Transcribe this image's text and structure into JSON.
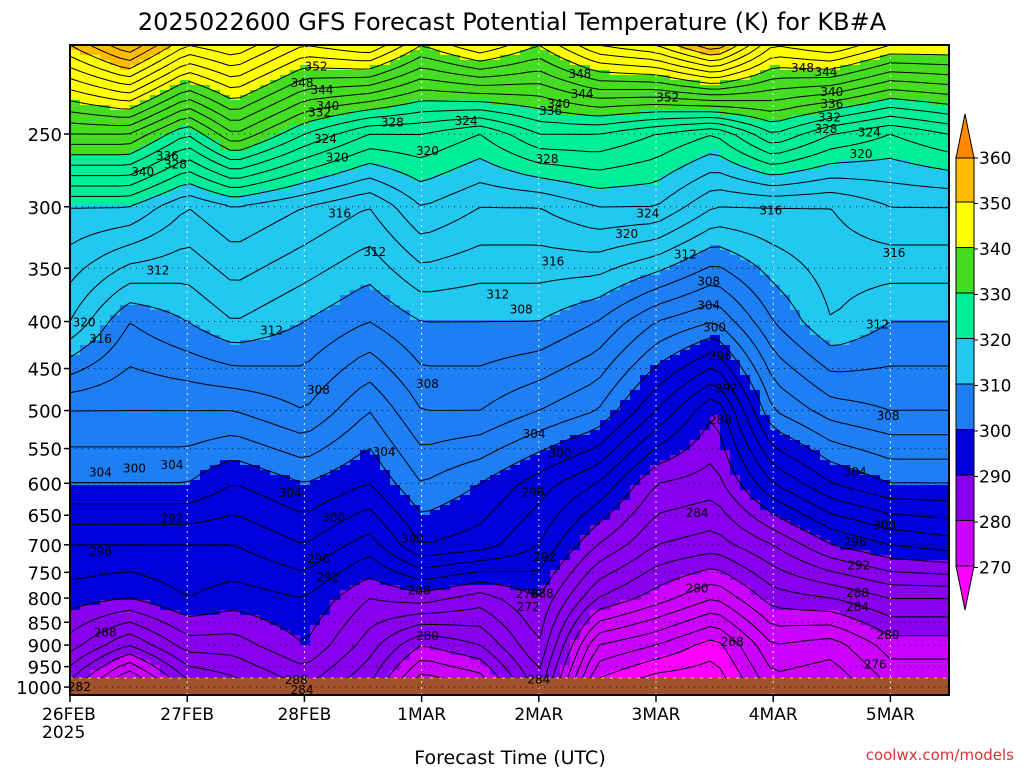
{
  "chart_data": {
    "type": "heatmap",
    "title": "2025022600 GFS Forecast Potential Temperature (K) for KB#A",
    "xlabel": "Forecast Time (UTC)",
    "ylabel": "",
    "credit": "coolwx.com/models",
    "units": "K",
    "y_scale": "log",
    "y_reversed": true,
    "ylim": [
      1020,
      200
    ],
    "xlim": [
      0,
      7.5
    ],
    "grid": true,
    "x_ticks": [
      {
        "value": 0,
        "label": "26FEB",
        "sub": "2025"
      },
      {
        "value": 1,
        "label": "27FEB",
        "sub": ""
      },
      {
        "value": 2,
        "label": "28FEB",
        "sub": ""
      },
      {
        "value": 3,
        "label": "1MAR",
        "sub": ""
      },
      {
        "value": 4,
        "label": "2MAR",
        "sub": ""
      },
      {
        "value": 5,
        "label": "3MAR",
        "sub": ""
      },
      {
        "value": 6,
        "label": "4MAR",
        "sub": ""
      },
      {
        "value": 7,
        "label": "5MAR",
        "sub": ""
      }
    ],
    "y_ticks": [
      250,
      300,
      350,
      400,
      450,
      500,
      550,
      600,
      650,
      700,
      750,
      800,
      850,
      900,
      950,
      1000
    ],
    "colorbar": {
      "ticks": [
        360,
        350,
        340,
        330,
        320,
        310,
        300,
        290,
        280,
        270
      ],
      "bands": [
        {
          "min": 260,
          "max": 270,
          "color": "#ff00ff"
        },
        {
          "min": 270,
          "max": 280,
          "color": "#cc00ff"
        },
        {
          "min": 280,
          "max": 290,
          "color": "#8800ee"
        },
        {
          "min": 290,
          "max": 300,
          "color": "#0000dd"
        },
        {
          "min": 300,
          "max": 310,
          "color": "#1e7ff5"
        },
        {
          "min": 310,
          "max": 320,
          "color": "#22c8f0"
        },
        {
          "min": 320,
          "max": 330,
          "color": "#00ee99"
        },
        {
          "min": 330,
          "max": 340,
          "color": "#44dd22"
        },
        {
          "min": 340,
          "max": 350,
          "color": "#ffff00"
        },
        {
          "min": 350,
          "max": 360,
          "color": "#ffbb00"
        },
        {
          "min": 360,
          "max": 370,
          "color": "#ff8800"
        }
      ]
    },
    "contour_interval": 2,
    "profiles": [
      {
        "t": 0.0,
        "pressures": [
          1000,
          900,
          800,
          700,
          600,
          500,
          400,
          300,
          250,
          200
        ],
        "theta": [
          281,
          287,
          291,
          294,
          300,
          304,
          314,
          320,
          334,
          350
        ]
      },
      {
        "t": 0.5,
        "pressures": [
          1000,
          900,
          800,
          700,
          600,
          500,
          400,
          300,
          250,
          200
        ],
        "theta": [
          272,
          282,
          290,
          294,
          300,
          304,
          308,
          320,
          334,
          356
        ]
      },
      {
        "t": 1.0,
        "pressures": [
          1000,
          900,
          800,
          700,
          600,
          500,
          400,
          300,
          250,
          200
        ],
        "theta": [
          281,
          287,
          292,
          294,
          300,
          304,
          310,
          316,
          328,
          348
        ]
      },
      {
        "t": 1.4,
        "pressures": [
          1000,
          900,
          800,
          700,
          600,
          500,
          400,
          300,
          250,
          200
        ],
        "theta": [
          283,
          287,
          291,
          294,
          298,
          304,
          312,
          318,
          334,
          350
        ]
      },
      {
        "t": 2.0,
        "pressures": [
          1000,
          900,
          800,
          700,
          600,
          500,
          400,
          300,
          250,
          200
        ],
        "theta": [
          286,
          290,
          292,
          296,
          300,
          306,
          310,
          316,
          328,
          344
        ]
      },
      {
        "t": 2.55,
        "pressures": [
          1000,
          900,
          800,
          700,
          600,
          500,
          400,
          300,
          250,
          200
        ],
        "theta": [
          282,
          285,
          288,
          293,
          298,
          302,
          308,
          314,
          324,
          346
        ]
      },
      {
        "t": 3.0,
        "pressures": [
          1000,
          900,
          800,
          700,
          600,
          500,
          400,
          300,
          250,
          200
        ],
        "theta": [
          274,
          280,
          289,
          298,
          302,
          306,
          310,
          318,
          324,
          340
        ]
      },
      {
        "t": 3.5,
        "pressures": [
          1000,
          900,
          800,
          700,
          600,
          500,
          400,
          300,
          250,
          200
        ],
        "theta": [
          276,
          282,
          287,
          297,
          300,
          306,
          310,
          316,
          322,
          344
        ]
      },
      {
        "t": 4.0,
        "pressures": [
          1000,
          900,
          800,
          700,
          600,
          500,
          400,
          300,
          250,
          200
        ],
        "theta": [
          285,
          288,
          290,
          294,
          297,
          304,
          310,
          316,
          326,
          340
        ]
      },
      {
        "t": 4.5,
        "pressures": [
          1000,
          900,
          800,
          700,
          600,
          500,
          400,
          300,
          250,
          200
        ],
        "theta": [
          269,
          274,
          282,
          288,
          294,
          302,
          308,
          318,
          326,
          346
        ]
      },
      {
        "t": 5.0,
        "pressures": [
          1000,
          900,
          800,
          700,
          600,
          500,
          400,
          300,
          250,
          200
        ],
        "theta": [
          266,
          272,
          279,
          284,
          288,
          296,
          304,
          318,
          324,
          348
        ]
      },
      {
        "t": 5.5,
        "pressures": [
          1000,
          900,
          800,
          700,
          600,
          500,
          400,
          300,
          250,
          200
        ],
        "theta": [
          266,
          269,
          276,
          283,
          287,
          290,
          302,
          314,
          322,
          354
        ]
      },
      {
        "t": 6.0,
        "pressures": [
          1000,
          900,
          800,
          700,
          600,
          500,
          400,
          300,
          250,
          200
        ],
        "theta": [
          273,
          276,
          281,
          286,
          294,
          302,
          308,
          314,
          328,
          344
        ]
      },
      {
        "t": 6.5,
        "pressures": [
          1000,
          900,
          800,
          700,
          600,
          500,
          400,
          300,
          250,
          200
        ],
        "theta": [
          272,
          275,
          282,
          290,
          298,
          305,
          312,
          314,
          324,
          346
        ]
      },
      {
        "t": 7.0,
        "pressures": [
          1000,
          900,
          800,
          700,
          600,
          500,
          400,
          300,
          250,
          200
        ],
        "theta": [
          276,
          279,
          284,
          292,
          300,
          306,
          310,
          316,
          322,
          342
        ]
      },
      {
        "t": 7.5,
        "pressures": [
          1000,
          900,
          800,
          700,
          600,
          500,
          400,
          300,
          250,
          200
        ],
        "theta": [
          276,
          279,
          284,
          293,
          300,
          306,
          310,
          316,
          324,
          342
        ]
      }
    ],
    "annotations": [
      {
        "t": 0.08,
        "p": 1000,
        "text": "282"
      },
      {
        "t": 0.3,
        "p": 872,
        "text": "288"
      },
      {
        "t": 0.26,
        "p": 712,
        "text": "296"
      },
      {
        "t": 0.26,
        "p": 584,
        "text": "304"
      },
      {
        "t": 0.55,
        "p": 578,
        "text": "300"
      },
      {
        "t": 0.87,
        "p": 573,
        "text": "304"
      },
      {
        "t": 0.87,
        "p": 655,
        "text": "292"
      },
      {
        "t": 0.12,
        "p": 401,
        "text": "320"
      },
      {
        "t": 0.26,
        "p": 418,
        "text": "316"
      },
      {
        "t": 0.75,
        "p": 352,
        "text": "312"
      },
      {
        "t": 0.62,
        "p": 275,
        "text": "340"
      },
      {
        "t": 0.83,
        "p": 264,
        "text": "336"
      },
      {
        "t": 0.9,
        "p": 270,
        "text": "328"
      },
      {
        "t": 1.72,
        "p": 409,
        "text": "312"
      },
      {
        "t": 1.88,
        "p": 615,
        "text": "304"
      },
      {
        "t": 1.93,
        "p": 982,
        "text": "288"
      },
      {
        "t": 1.98,
        "p": 1007,
        "text": "284"
      },
      {
        "t": 2.12,
        "p": 475,
        "text": "308"
      },
      {
        "t": 2.25,
        "p": 654,
        "text": "300"
      },
      {
        "t": 2.12,
        "p": 725,
        "text": "296"
      },
      {
        "t": 2.2,
        "p": 760,
        "text": "292"
      },
      {
        "t": 2.3,
        "p": 305,
        "text": "316"
      },
      {
        "t": 2.28,
        "p": 265,
        "text": "320"
      },
      {
        "t": 2.18,
        "p": 253,
        "text": "324"
      },
      {
        "t": 2.13,
        "p": 237,
        "text": "332"
      },
      {
        "t": 2.2,
        "p": 233,
        "text": "340"
      },
      {
        "t": 2.15,
        "p": 224,
        "text": "344"
      },
      {
        "t": 1.98,
        "p": 220,
        "text": "348"
      },
      {
        "t": 2.1,
        "p": 211,
        "text": "352"
      },
      {
        "t": 2.6,
        "p": 336,
        "text": "312"
      },
      {
        "t": 2.68,
        "p": 555,
        "text": "304"
      },
      {
        "t": 2.92,
        "p": 690,
        "text": "300"
      },
      {
        "t": 2.75,
        "p": 243,
        "text": "328"
      },
      {
        "t": 3.05,
        "p": 261,
        "text": "320"
      },
      {
        "t": 3.38,
        "p": 242,
        "text": "324"
      },
      {
        "t": 3.05,
        "p": 468,
        "text": "308"
      },
      {
        "t": 2.98,
        "p": 785,
        "text": "288"
      },
      {
        "t": 3.05,
        "p": 880,
        "text": "280"
      },
      {
        "t": 3.65,
        "p": 374,
        "text": "312"
      },
      {
        "t": 3.85,
        "p": 388,
        "text": "308"
      },
      {
        "t": 3.96,
        "p": 530,
        "text": "304"
      },
      {
        "t": 3.95,
        "p": 614,
        "text": "296"
      },
      {
        "t": 4.12,
        "p": 344,
        "text": "316"
      },
      {
        "t": 4.18,
        "p": 556,
        "text": "300"
      },
      {
        "t": 4.05,
        "p": 722,
        "text": "292"
      },
      {
        "t": 4.03,
        "p": 791,
        "text": "288"
      },
      {
        "t": 4.0,
        "p": 981,
        "text": "284"
      },
      {
        "t": 4.07,
        "p": 266,
        "text": "328"
      },
      {
        "t": 4.1,
        "p": 236,
        "text": "336"
      },
      {
        "t": 4.17,
        "p": 232,
        "text": "340"
      },
      {
        "t": 4.37,
        "p": 226,
        "text": "344"
      },
      {
        "t": 4.35,
        "p": 215,
        "text": "348"
      },
      {
        "t": 4.75,
        "p": 321,
        "text": "320"
      },
      {
        "t": 4.93,
        "p": 305,
        "text": "324"
      },
      {
        "t": 5.1,
        "p": 228,
        "text": "352"
      },
      {
        "t": 5.25,
        "p": 338,
        "text": "312"
      },
      {
        "t": 5.45,
        "p": 362,
        "text": "308"
      },
      {
        "t": 5.45,
        "p": 384,
        "text": "304"
      },
      {
        "t": 5.5,
        "p": 406,
        "text": "300"
      },
      {
        "t": 5.55,
        "p": 436,
        "text": "296"
      },
      {
        "t": 5.6,
        "p": 473,
        "text": "292"
      },
      {
        "t": 5.55,
        "p": 512,
        "text": "288"
      },
      {
        "t": 3.9,
        "p": 792,
        "text": "276"
      },
      {
        "t": 3.91,
        "p": 818,
        "text": "272"
      },
      {
        "t": 5.35,
        "p": 646,
        "text": "284"
      },
      {
        "t": 5.35,
        "p": 781,
        "text": "280"
      },
      {
        "t": 5.65,
        "p": 893,
        "text": "268"
      },
      {
        "t": 5.98,
        "p": 303,
        "text": "316"
      },
      {
        "t": 6.25,
        "p": 212,
        "text": "348"
      },
      {
        "t": 6.45,
        "p": 214,
        "text": "344"
      },
      {
        "t": 6.5,
        "p": 225,
        "text": "340"
      },
      {
        "t": 6.5,
        "p": 232,
        "text": "336"
      },
      {
        "t": 6.48,
        "p": 240,
        "text": "332"
      },
      {
        "t": 6.45,
        "p": 247,
        "text": "328"
      },
      {
        "t": 6.82,
        "p": 249,
        "text": "324"
      },
      {
        "t": 6.75,
        "p": 263,
        "text": "320"
      },
      {
        "t": 7.03,
        "p": 337,
        "text": "316"
      },
      {
        "t": 6.89,
        "p": 403,
        "text": "312"
      },
      {
        "t": 6.98,
        "p": 507,
        "text": "308"
      },
      {
        "t": 6.7,
        "p": 583,
        "text": "304"
      },
      {
        "t": 6.95,
        "p": 667,
        "text": "300"
      },
      {
        "t": 6.7,
        "p": 695,
        "text": "296"
      },
      {
        "t": 6.73,
        "p": 737,
        "text": "292"
      },
      {
        "t": 6.72,
        "p": 790,
        "text": "288"
      },
      {
        "t": 6.72,
        "p": 818,
        "text": "284"
      },
      {
        "t": 6.98,
        "p": 878,
        "text": "280"
      },
      {
        "t": 6.87,
        "p": 945,
        "text": "276"
      }
    ]
  }
}
